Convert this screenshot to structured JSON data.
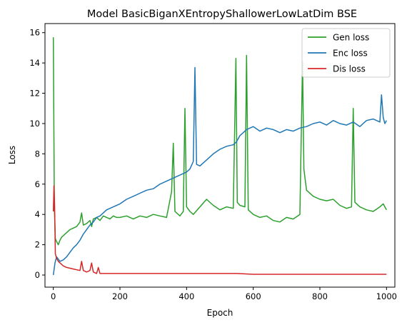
{
  "chart_data": {
    "type": "line",
    "title": "Model BasicBiganXEntropyShallowerLowLatDim BSE",
    "xlabel": "Epoch",
    "ylabel": "Loss",
    "xlim": [
      -25,
      1025
    ],
    "ylim": [
      -0.8,
      16.6
    ],
    "xticks": [
      0,
      200,
      400,
      600,
      800,
      1000
    ],
    "yticks": [
      0,
      2,
      4,
      6,
      8,
      10,
      12,
      14,
      16
    ],
    "grid": false,
    "legend_position": "top-right",
    "series": [
      {
        "name": "Gen loss",
        "color": "#2ca02c",
        "x": [
          0,
          3,
          6,
          10,
          15,
          20,
          25,
          30,
          40,
          50,
          60,
          70,
          80,
          85,
          90,
          100,
          110,
          115,
          120,
          130,
          140,
          150,
          160,
          170,
          180,
          190,
          200,
          220,
          240,
          260,
          280,
          300,
          320,
          340,
          355,
          360,
          365,
          380,
          390,
          395,
          400,
          410,
          420,
          440,
          460,
          480,
          500,
          520,
          540,
          548,
          552,
          560,
          575,
          580,
          585,
          600,
          620,
          640,
          660,
          680,
          700,
          720,
          740,
          748,
          752,
          760,
          780,
          800,
          820,
          840,
          860,
          880,
          895,
          900,
          905,
          920,
          940,
          960,
          980,
          990,
          1000
        ],
        "y": [
          15.7,
          4.5,
          2.4,
          2.2,
          2.0,
          2.3,
          2.5,
          2.6,
          2.8,
          3.0,
          3.1,
          3.2,
          3.5,
          4.1,
          3.3,
          3.4,
          3.6,
          3.2,
          3.7,
          3.8,
          3.6,
          3.9,
          3.8,
          3.7,
          3.9,
          3.8,
          3.8,
          3.9,
          3.7,
          3.9,
          3.8,
          4.0,
          3.9,
          3.8,
          5.5,
          8.7,
          4.2,
          3.9,
          4.2,
          11.0,
          4.5,
          4.2,
          4.0,
          4.5,
          5.0,
          4.6,
          4.3,
          4.5,
          4.4,
          14.3,
          4.8,
          4.6,
          4.5,
          14.5,
          4.3,
          4.0,
          3.8,
          3.9,
          3.6,
          3.5,
          3.8,
          3.7,
          4.0,
          14.1,
          7.0,
          5.6,
          5.2,
          5.0,
          4.9,
          5.0,
          4.6,
          4.4,
          4.5,
          11.0,
          4.8,
          4.5,
          4.3,
          4.2,
          4.5,
          4.7,
          4.3
        ]
      },
      {
        "name": "Enc loss",
        "color": "#1f77b4",
        "x": [
          0,
          5,
          10,
          20,
          30,
          40,
          50,
          60,
          70,
          80,
          90,
          100,
          110,
          120,
          130,
          140,
          150,
          160,
          180,
          200,
          220,
          240,
          260,
          280,
          300,
          320,
          340,
          360,
          380,
          400,
          410,
          420,
          425,
          430,
          440,
          460,
          480,
          500,
          520,
          540,
          550,
          560,
          580,
          600,
          620,
          640,
          660,
          680,
          700,
          720,
          740,
          760,
          780,
          800,
          820,
          840,
          860,
          880,
          900,
          920,
          940,
          960,
          980,
          985,
          990,
          995,
          1000
        ],
        "y": [
          0.0,
          0.8,
          1.2,
          0.9,
          1.0,
          1.2,
          1.5,
          1.8,
          2.0,
          2.3,
          2.7,
          3.0,
          3.3,
          3.5,
          3.8,
          3.9,
          4.1,
          4.3,
          4.5,
          4.7,
          5.0,
          5.2,
          5.4,
          5.6,
          5.7,
          6.0,
          6.2,
          6.4,
          6.6,
          6.8,
          7.0,
          7.5,
          13.7,
          7.3,
          7.2,
          7.6,
          8.0,
          8.3,
          8.5,
          8.6,
          8.8,
          9.2,
          9.6,
          9.8,
          9.5,
          9.7,
          9.6,
          9.4,
          9.6,
          9.5,
          9.7,
          9.8,
          10.0,
          10.1,
          9.9,
          10.2,
          10.0,
          9.9,
          10.1,
          9.8,
          10.2,
          10.3,
          10.1,
          11.9,
          10.4,
          10.0,
          10.2
        ]
      },
      {
        "name": "Dis loss",
        "color": "#d62728",
        "x": [
          0,
          2,
          4,
          6,
          10,
          15,
          20,
          30,
          40,
          60,
          80,
          85,
          90,
          100,
          110,
          115,
          120,
          130,
          135,
          140,
          160,
          200,
          250,
          300,
          350,
          400,
          450,
          500,
          550,
          600,
          650,
          700,
          750,
          800,
          850,
          900,
          950,
          1000
        ],
        "y": [
          4.2,
          5.9,
          4.5,
          1.4,
          1.1,
          0.9,
          0.8,
          0.6,
          0.5,
          0.4,
          0.3,
          0.9,
          0.3,
          0.2,
          0.3,
          0.8,
          0.2,
          0.1,
          0.5,
          0.1,
          0.1,
          0.1,
          0.1,
          0.1,
          0.1,
          0.1,
          0.1,
          0.1,
          0.1,
          0.05,
          0.05,
          0.05,
          0.05,
          0.05,
          0.05,
          0.05,
          0.05,
          0.05
        ]
      }
    ]
  }
}
